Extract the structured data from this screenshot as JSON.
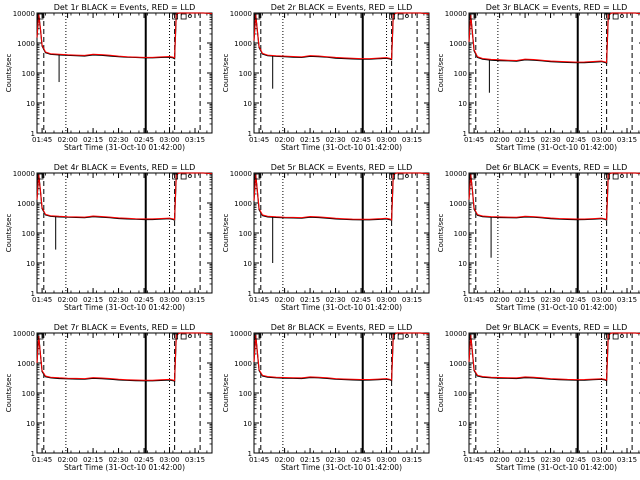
{
  "chart_data": {
    "type": "line",
    "layout": "3x3 grid of panels",
    "shared": {
      "xlabel": "Start Time (31-Oct-10 01:42:00)",
      "ylabel": "Counts/sec",
      "x_ticks": [
        "01:45",
        "02:00",
        "02:15",
        "02:30",
        "02:45",
        "03:00",
        "03:15"
      ],
      "x_tick_minutes": [
        105,
        120,
        135,
        150,
        165,
        180,
        195
      ],
      "xlim_minutes": [
        102,
        205
      ],
      "y_scale": "log",
      "ylim": [
        1,
        10000
      ],
      "y_ticks": [
        1,
        10,
        100,
        1000,
        10000
      ],
      "y_tick_labels": [
        "1",
        "10",
        "100",
        "1000",
        "10000"
      ],
      "series_colors": {
        "events": "#000000",
        "lld": "#ff0000"
      },
      "grid": false,
      "markers": {
        "solid_line_minutes": 166,
        "dashed_line_minutes": [
          106,
          183,
          198
        ],
        "dotted_line_minutes": [
          119,
          180
        ]
      },
      "x": [
        102,
        103,
        104,
        105,
        107,
        110,
        115,
        120,
        125,
        130,
        135,
        140,
        145,
        150,
        155,
        160,
        165,
        170,
        175,
        180,
        182,
        183,
        184,
        186,
        188,
        190,
        193,
        196,
        200,
        203,
        205
      ]
    },
    "panels": [
      {
        "title": "Det 1r BLACK = Events, RED = LLD",
        "events": [
          1500,
          9500,
          3000,
          800,
          480,
          420,
          400,
          390,
          380,
          370,
          400,
          390,
          370,
          350,
          340,
          330,
          320,
          320,
          330,
          340,
          320,
          300,
          9500,
          10000,
          10000,
          10000,
          10000,
          10000,
          10000,
          9800,
          9500
        ],
        "lld": [
          1500,
          9500,
          3000,
          850,
          500,
          440,
          420,
          405,
          395,
          385,
          420,
          410,
          390,
          365,
          350,
          340,
          330,
          330,
          345,
          355,
          340,
          320,
          9600,
          10000,
          10000,
          10000,
          10000,
          10000,
          10000,
          9800,
          9500
        ],
        "dip": {
          "x": 115,
          "y": 50
        }
      },
      {
        "title": "Det 2r BLACK = Events, RED = LLD",
        "events": [
          1200,
          9000,
          2500,
          700,
          430,
          380,
          360,
          350,
          340,
          330,
          360,
          350,
          335,
          315,
          305,
          295,
          290,
          290,
          300,
          310,
          295,
          280,
          9000,
          10000,
          10000,
          10000,
          10000,
          10000,
          10000,
          9600,
          9300
        ],
        "lld": [
          1200,
          9000,
          2500,
          750,
          450,
          395,
          375,
          365,
          355,
          345,
          380,
          370,
          350,
          330,
          318,
          308,
          302,
          302,
          315,
          325,
          310,
          295,
          9100,
          10000,
          10000,
          10000,
          10000,
          10000,
          10000,
          9600,
          9300
        ],
        "dip": {
          "x": 113,
          "y": 30
        }
      },
      {
        "title": "Det 3r BLACK = Events, RED = LLD",
        "events": [
          1100,
          8500,
          2200,
          550,
          330,
          290,
          270,
          260,
          255,
          250,
          275,
          268,
          255,
          240,
          232,
          225,
          220,
          222,
          230,
          240,
          225,
          215,
          8500,
          10000,
          10000,
          10000,
          10000,
          10000,
          10000,
          9500,
          9200
        ],
        "lld": [
          1100,
          8500,
          2200,
          600,
          350,
          305,
          285,
          275,
          268,
          262,
          290,
          282,
          268,
          252,
          243,
          236,
          230,
          232,
          242,
          252,
          236,
          225,
          8600,
          10000,
          10000,
          10000,
          10000,
          10000,
          10000,
          9500,
          9200
        ],
        "dip": {
          "x": 114,
          "y": 22
        }
      },
      {
        "title": "Det 4r BLACK = Events, RED = LLD",
        "events": [
          1300,
          9200,
          2600,
          650,
          400,
          360,
          345,
          335,
          330,
          325,
          350,
          340,
          325,
          305,
          295,
          288,
          282,
          282,
          292,
          300,
          285,
          270,
          9000,
          10000,
          10000,
          10000,
          10000,
          10000,
          10000,
          9700,
          9400
        ],
        "lld": [
          1300,
          9200,
          2600,
          700,
          420,
          378,
          360,
          350,
          345,
          340,
          368,
          356,
          340,
          318,
          308,
          300,
          294,
          294,
          305,
          315,
          298,
          282,
          9100,
          10000,
          10000,
          10000,
          10000,
          10000,
          10000,
          9700,
          9400
        ],
        "dip": {
          "x": 113,
          "y": 28
        }
      },
      {
        "title": "Det 5r BLACK = Events, RED = LLD",
        "events": [
          1200,
          9000,
          2400,
          600,
          380,
          345,
          330,
          322,
          318,
          312,
          338,
          328,
          314,
          296,
          287,
          280,
          275,
          276,
          285,
          295,
          280,
          265,
          9000,
          10000,
          10000,
          10000,
          10000,
          10000,
          10000,
          9600,
          9300
        ],
        "lld": [
          1200,
          9000,
          2400,
          650,
          400,
          362,
          346,
          336,
          332,
          326,
          355,
          344,
          328,
          309,
          299,
          291,
          286,
          287,
          297,
          308,
          292,
          276,
          9100,
          10000,
          10000,
          10000,
          10000,
          10000,
          10000,
          9600,
          9300
        ],
        "dip": {
          "x": 113,
          "y": 10
        }
      },
      {
        "title": "Det 6r BLACK = Events, RED = LLD",
        "events": [
          1300,
          9300,
          2700,
          620,
          390,
          350,
          335,
          328,
          325,
          320,
          345,
          335,
          320,
          302,
          292,
          285,
          280,
          281,
          290,
          300,
          286,
          270,
          9200,
          10000,
          10000,
          10000,
          10000,
          10000,
          10000,
          9700,
          9400
        ],
        "lld": [
          1300,
          9300,
          2700,
          670,
          410,
          368,
          352,
          343,
          340,
          335,
          362,
          351,
          335,
          316,
          305,
          297,
          292,
          293,
          303,
          313,
          298,
          282,
          9300,
          10000,
          10000,
          10000,
          10000,
          10000,
          10000,
          9700,
          9400
        ],
        "dip": {
          "x": 115,
          "y": 15
        }
      },
      {
        "title": "Det 7r BLACK = Events, RED = LLD",
        "events": [
          1000,
          8000,
          2000,
          520,
          350,
          320,
          305,
          298,
          292,
          288,
          310,
          302,
          290,
          274,
          266,
          259,
          255,
          256,
          264,
          272,
          260,
          248,
          8500,
          10000,
          10000,
          10000,
          10000,
          10000,
          10000,
          9500,
          9200
        ],
        "lld": [
          1000,
          8000,
          2000,
          560,
          368,
          336,
          320,
          312,
          306,
          302,
          326,
          317,
          304,
          287,
          278,
          271,
          266,
          267,
          276,
          285,
          272,
          259,
          8600,
          10000,
          10000,
          10000,
          10000,
          10000,
          10000,
          9500,
          9200
        ],
        "dip": null
      },
      {
        "title": "Det 8r BLACK = Events, RED = LLD",
        "events": [
          1100,
          8500,
          2200,
          560,
          370,
          338,
          322,
          315,
          310,
          305,
          328,
          320,
          306,
          290,
          281,
          274,
          270,
          271,
          279,
          288,
          275,
          262,
          8700,
          10000,
          10000,
          10000,
          10000,
          10000,
          10000,
          9600,
          9300
        ],
        "lld": [
          1100,
          8500,
          2200,
          600,
          388,
          354,
          337,
          329,
          324,
          319,
          344,
          335,
          320,
          303,
          293,
          286,
          281,
          282,
          291,
          301,
          287,
          273,
          8800,
          10000,
          10000,
          10000,
          10000,
          10000,
          10000,
          9600,
          9300
        ],
        "dip": null
      },
      {
        "title": "Det 9r BLACK = Events, RED = LLD",
        "events": [
          1100,
          8600,
          2300,
          560,
          370,
          338,
          322,
          314,
          309,
          304,
          327,
          318,
          305,
          289,
          280,
          273,
          269,
          270,
          278,
          287,
          274,
          260,
          8800,
          10000,
          10000,
          10000,
          10000,
          10000,
          10000,
          9600,
          9300
        ],
        "lld": [
          1100,
          8600,
          2300,
          600,
          388,
          354,
          337,
          328,
          323,
          318,
          343,
          334,
          319,
          302,
          292,
          285,
          280,
          281,
          290,
          300,
          286,
          271,
          8900,
          10000,
          10000,
          10000,
          10000,
          10000,
          10000,
          9600,
          9300
        ],
        "dip": null
      }
    ]
  }
}
